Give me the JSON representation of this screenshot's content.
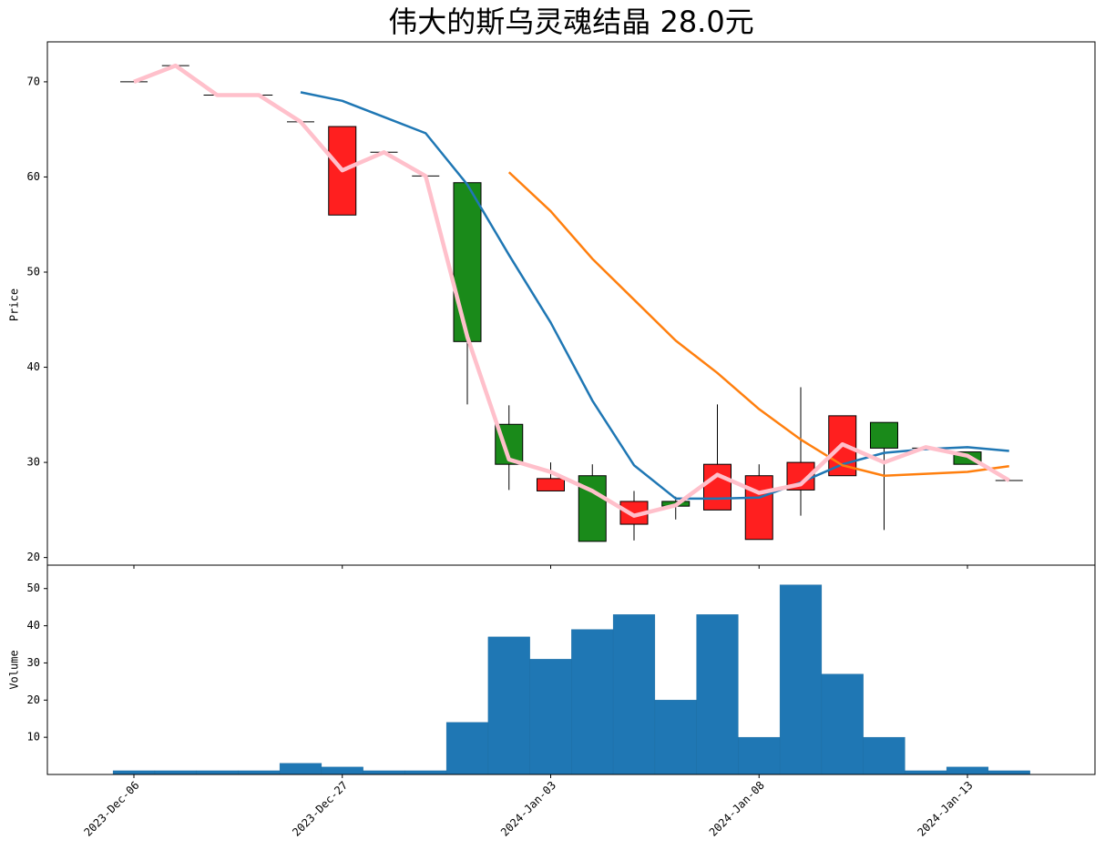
{
  "chart_data": [
    {
      "type": "candlestick",
      "title": "伟大的斯乌灵魂结晶  28.0元",
      "ylabel": "Price",
      "open": [
        70.0,
        71.7,
        68.6,
        68.6,
        65.8,
        56.0,
        62.6,
        60.1,
        59.4,
        34.0,
        27.0,
        28.6,
        23.5,
        25.9,
        25.0,
        21.9,
        27.1,
        28.6,
        34.2,
        31.5,
        31.1,
        28.1
      ],
      "high": [
        70.0,
        71.7,
        68.6,
        68.6,
        65.8,
        65.3,
        62.6,
        60.1,
        59.4,
        36.0,
        30.0,
        29.8,
        27.0,
        26.4,
        36.1,
        29.8,
        37.9,
        34.9,
        34.2,
        31.5,
        31.1,
        28.1
      ],
      "low": [
        70.0,
        71.7,
        68.6,
        68.6,
        65.8,
        56.0,
        62.6,
        60.1,
        36.1,
        27.1,
        27.0,
        21.7,
        21.8,
        24.0,
        25.0,
        21.9,
        24.4,
        28.6,
        22.9,
        31.5,
        29.8,
        28.1
      ],
      "close": [
        70.0,
        71.7,
        68.6,
        68.6,
        65.8,
        65.3,
        62.6,
        60.1,
        42.7,
        29.8,
        28.3,
        21.7,
        25.9,
        25.4,
        29.8,
        28.6,
        30.0,
        34.9,
        31.5,
        31.5,
        29.8,
        28.1
      ],
      "up_color": "#ff1f1f",
      "down_color": "#1a8a1a",
      "lines": [
        {
          "color": "#1f77b4",
          "width": 2.5,
          "values": [
            null,
            null,
            null,
            null,
            68.9,
            68.0,
            66.3,
            64.6,
            59.2,
            51.8,
            44.7,
            36.5,
            29.7,
            26.2,
            26.2,
            26.3,
            27.9,
            29.8,
            31.0,
            31.4,
            31.6,
            31.2
          ]
        },
        {
          "color": "#ff7f0e",
          "width": 2.5,
          "values": [
            null,
            null,
            null,
            null,
            null,
            null,
            null,
            null,
            null,
            60.5,
            56.4,
            51.4,
            47.1,
            42.8,
            39.4,
            35.6,
            32.4,
            29.7,
            28.6,
            28.8,
            29.0,
            29.6
          ]
        },
        {
          "color": "#ffc0cb",
          "width": 4.5,
          "values": [
            70.0,
            71.7,
            68.6,
            68.6,
            65.8,
            60.7,
            62.6,
            60.1,
            43.2,
            30.3,
            29.0,
            27.0,
            24.4,
            25.5,
            28.7,
            26.8,
            27.7,
            31.9,
            30.0,
            31.6,
            30.7,
            28.1
          ]
        }
      ],
      "ylim": [
        19.2,
        74.2
      ],
      "yticks": [
        20,
        30,
        40,
        50,
        60,
        70
      ]
    },
    {
      "type": "bar",
      "ylabel": "Volume",
      "color": "#1f77b4",
      "categories": [
        "2023-Dec-06",
        null,
        null,
        null,
        null,
        "2023-Dec-27",
        null,
        null,
        null,
        null,
        "2024-Jan-03",
        null,
        null,
        null,
        null,
        "2024-Jan-08",
        null,
        null,
        null,
        null,
        "2024-Jan-13",
        null
      ],
      "values": [
        1,
        1,
        1,
        1,
        3,
        2,
        1,
        1,
        14,
        37,
        31,
        39,
        43,
        20,
        43,
        10,
        51,
        27,
        10,
        1,
        2,
        1
      ],
      "ylim": [
        0,
        56.3
      ],
      "yticks": [
        10,
        20,
        30,
        40,
        50
      ]
    }
  ]
}
